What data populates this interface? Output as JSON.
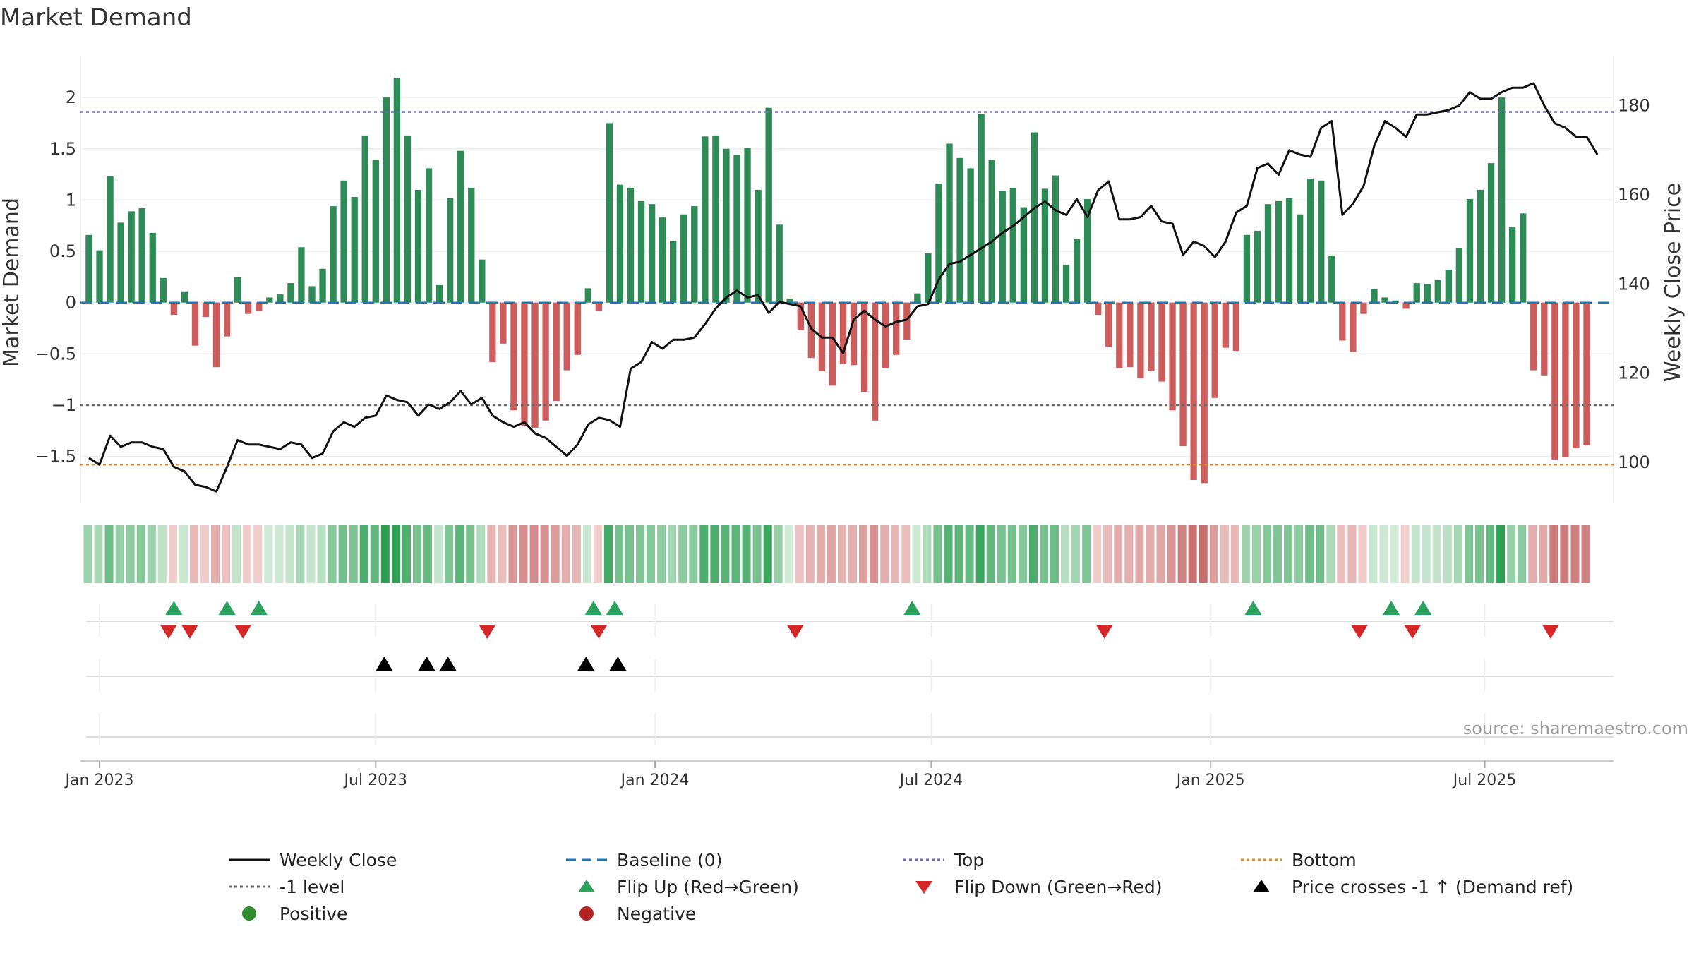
{
  "chart_data": {
    "type": "bar+line",
    "title": "Market Demand",
    "ylabel": "Market Demand",
    "y2label": "Weekly Close Price",
    "ylim": [
      -1.95,
      2.4
    ],
    "y2lim": [
      91,
      191
    ],
    "yticks": [
      {
        "v": 2,
        "label": "2"
      },
      {
        "v": 1.5,
        "label": "1.5"
      },
      {
        "v": 1,
        "label": "1"
      },
      {
        "v": 0.5,
        "label": "0.5"
      },
      {
        "v": 0,
        "label": "0"
      },
      {
        "v": -0.5,
        "label": "−0.5"
      },
      {
        "v": -1,
        "label": "−1"
      },
      {
        "v": -1.5,
        "label": "−1.5"
      }
    ],
    "y2ticks": [
      {
        "v": 180,
        "label": "180"
      },
      {
        "v": 160,
        "label": "160"
      },
      {
        "v": 140,
        "label": "140"
      },
      {
        "v": 120,
        "label": "120"
      },
      {
        "v": 100,
        "label": "100"
      }
    ],
    "x_start_week_offset": -1,
    "week_count": 146,
    "xticks": [
      {
        "week": 0,
        "label": "Jan 2023"
      },
      {
        "week": 26,
        "label": "Jul 2023"
      },
      {
        "week": 52.3,
        "label": "Jan 2024"
      },
      {
        "week": 78.3,
        "label": "Jul 2024"
      },
      {
        "week": 104.6,
        "label": "Jan 2025"
      },
      {
        "week": 130.4,
        "label": "Jul 2025"
      }
    ],
    "top_level": 1.86,
    "minus1_level": -1,
    "bottom_level": -1.58,
    "demand": [
      0.66,
      0.51,
      1.23,
      0.78,
      0.89,
      0.92,
      0.68,
      0.24,
      -0.12,
      0.11,
      -0.42,
      -0.14,
      -0.63,
      -0.33,
      0.25,
      -0.11,
      -0.08,
      0.05,
      0.08,
      0.19,
      0.54,
      0.16,
      0.33,
      0.94,
      1.19,
      1.03,
      1.63,
      1.39,
      2.0,
      2.19,
      1.63,
      1.1,
      1.31,
      0.17,
      1.02,
      1.48,
      1.12,
      0.42,
      -0.58,
      -0.4,
      -1.05,
      -1.2,
      -1.22,
      -1.15,
      -0.96,
      -0.66,
      -0.51,
      0.14,
      -0.08,
      1.75,
      1.15,
      1.12,
      0.99,
      0.96,
      0.83,
      0.6,
      0.86,
      0.94,
      1.62,
      1.63,
      1.5,
      1.44,
      1.51,
      1.1,
      1.9,
      0.76,
      0.04,
      -0.27,
      -0.54,
      -0.67,
      -0.81,
      -0.6,
      -0.61,
      -0.87,
      -1.15,
      -0.64,
      -0.51,
      -0.36,
      0.09,
      0.48,
      1.16,
      1.55,
      1.41,
      1.31,
      1.84,
      1.39,
      1.09,
      1.12,
      0.93,
      1.66,
      1.11,
      1.24,
      0.37,
      0.62,
      1.01,
      -0.12,
      -0.43,
      -0.64,
      -0.63,
      -0.74,
      -0.67,
      -0.77,
      -1.05,
      -1.4,
      -1.73,
      -1.76,
      -0.93,
      -0.44,
      -0.47,
      0.66,
      0.7,
      0.96,
      0.99,
      1.02,
      0.86,
      1.21,
      1.19,
      0.46,
      -0.37,
      -0.48,
      -0.11,
      0.13,
      0.05,
      0.02,
      -0.06,
      0.19,
      0.18,
      0.22,
      0.32,
      0.53,
      1.01,
      1.1,
      1.36,
      2.0,
      0.74,
      0.87,
      -0.66,
      -0.71,
      -1.53,
      -1.51,
      -1.42,
      -1.39
    ],
    "weekly_close": [
      101.0,
      99.5,
      106.0,
      103.5,
      104.5,
      104.5,
      103.5,
      103.0,
      99.0,
      98.0,
      95.0,
      94.5,
      93.5,
      99.0,
      105.0,
      104.0,
      104.0,
      103.5,
      103.0,
      104.5,
      104.0,
      101.0,
      102.0,
      107.0,
      109.0,
      108.0,
      110.0,
      110.5,
      115.0,
      114.0,
      113.5,
      110.5,
      113.0,
      112.0,
      113.5,
      116.0,
      113.0,
      114.5,
      110.5,
      109.0,
      108.0,
      109.0,
      106.5,
      105.5,
      103.5,
      101.5,
      104.0,
      108.5,
      110.0,
      109.5,
      108.0,
      121.0,
      122.5,
      127.0,
      125.5,
      127.5,
      127.5,
      128.0,
      131.0,
      134.5,
      137.0,
      138.5,
      137.0,
      137.5,
      133.5,
      136.0,
      135.5,
      135.0,
      130.0,
      128.0,
      128.0,
      124.5,
      132.0,
      134.0,
      132.0,
      130.5,
      131.5,
      132.0,
      135.0,
      135.5,
      141.0,
      144.5,
      145.0,
      146.5,
      148.0,
      149.5,
      151.5,
      153.0,
      155.0,
      157.0,
      158.5,
      156.5,
      155.5,
      159.0,
      155.0,
      161.0,
      163.0,
      154.5,
      154.5,
      155.0,
      157.5,
      154.0,
      153.5,
      146.5,
      149.5,
      148.5,
      146.0,
      149.5,
      156.0,
      157.5,
      166.0,
      167.0,
      164.5,
      170.0,
      169.0,
      168.5,
      175.0,
      176.5,
      155.5,
      158.0,
      162.0,
      171.0,
      176.5,
      175.0,
      173.0,
      178.0,
      178.0,
      178.5,
      179.0,
      180.0,
      183.0,
      181.5,
      181.5,
      183.0,
      184.0,
      184.0,
      185.0,
      180.0,
      176.0,
      175.0,
      173.0,
      173.0,
      169.0
    ],
    "demand_color_scale": {
      "pos_light": "#d4ebd9",
      "pos_dark": "#2ea054",
      "neg_light": "#f3d3d1",
      "neg_dark": "#c06060"
    },
    "flip_up_weeks": [
      7,
      12,
      15,
      46.5,
      48.5,
      76.5,
      108.6,
      121.6,
      124.6
    ],
    "flip_down_weeks": [
      6.5,
      8.5,
      13.5,
      36.5,
      47,
      65.5,
      94.6,
      118.6,
      123.6,
      136.6
    ],
    "price_cross_weeks": [
      26.8,
      30.8,
      32.8,
      45.8,
      48.8
    ],
    "source_text": "source: sharemaestro.com",
    "colors": {
      "bar_positive": "#2e8b57",
      "bar_negative": "#cd5c5c",
      "close_line": "#111111",
      "baseline": "#1f77b4",
      "top_line": "#6a6ab5",
      "minus1_line": "#6b6b6b",
      "bottom_line": "#e08a1e",
      "flip_up": "#2ca25f",
      "flip_down": "#d62728",
      "price_cross": "#000000",
      "positive_dot": "#2e8b2e",
      "negative_dot": "#b22222"
    }
  },
  "legend": [
    {
      "key": "weekly_close",
      "label": "Weekly Close"
    },
    {
      "key": "baseline",
      "label": "Baseline (0)"
    },
    {
      "key": "top",
      "label": "Top"
    },
    {
      "key": "bottom",
      "label": "Bottom"
    },
    {
      "key": "minus1",
      "label": "-1 level"
    },
    {
      "key": "flip_up",
      "label": "Flip Up (Red→Green)"
    },
    {
      "key": "flip_down",
      "label": "Flip Down (Green→Red)"
    },
    {
      "key": "price_cross",
      "label": "Price crosses -1 ↑ (Demand ref)"
    },
    {
      "key": "positive",
      "label": "Positive"
    },
    {
      "key": "negative",
      "label": "Negative"
    }
  ]
}
